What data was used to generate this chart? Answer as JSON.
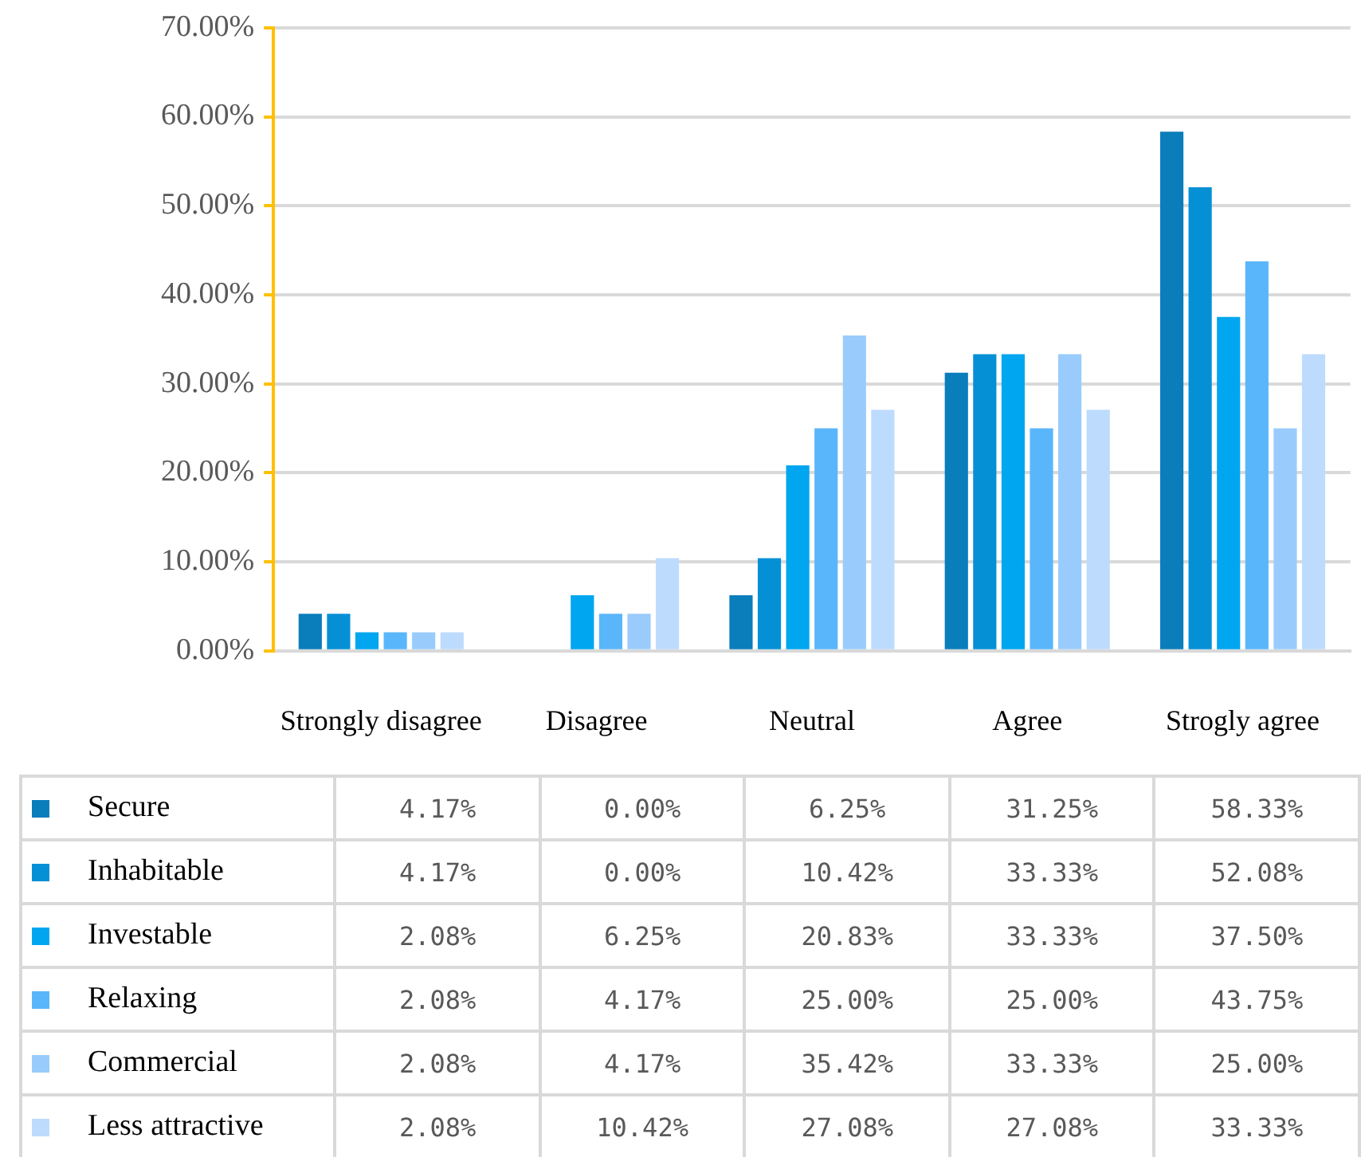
{
  "chart_data": {
    "type": "bar",
    "categories": [
      "Strongly disagree",
      "Disagree",
      "Neutral",
      "Agree",
      "Strogly agree"
    ],
    "series": [
      {
        "name": "Secure",
        "color": "#0a7dbb",
        "values": [
          4.17,
          0,
          6.25,
          31.25,
          58.33
        ],
        "value_labels": [
          "4.17%",
          "0.00%",
          "6.25%",
          "31.25%",
          "58.33%"
        ]
      },
      {
        "name": "Inhabitable",
        "color": "#0590d6",
        "values": [
          4.17,
          0,
          10.42,
          33.33,
          52.08
        ],
        "value_labels": [
          "4.17%",
          "0.00%",
          "10.42%",
          "33.33%",
          "52.08%"
        ]
      },
      {
        "name": "Investable",
        "color": "#00a6ef",
        "values": [
          2.08,
          6.25,
          20.83,
          33.33,
          37.5
        ],
        "value_labels": [
          "2.08%",
          "6.25%",
          "20.83%",
          "33.33%",
          "37.50%"
        ]
      },
      {
        "name": "Relaxing",
        "color": "#5ab6fb",
        "values": [
          2.08,
          4.17,
          25,
          25,
          43.75
        ],
        "value_labels": [
          "2.08%",
          "4.17%",
          "25.00%",
          "25.00%",
          "43.75%"
        ]
      },
      {
        "name": "Commercial",
        "color": "#99ccfc",
        "values": [
          2.08,
          4.17,
          35.42,
          33.33,
          25
        ],
        "value_labels": [
          "2.08%",
          "4.17%",
          "35.42%",
          "33.33%",
          "25.00%"
        ]
      },
      {
        "name": "Less attractive",
        "color": "#bddbfd",
        "values": [
          2.08,
          10.42,
          27.08,
          27.08,
          33.33
        ],
        "value_labels": [
          "2.08%",
          "10.42%",
          "27.08%",
          "27.08%",
          "33.33%"
        ]
      }
    ],
    "ylim": [
      0,
      70
    ],
    "yticks": [
      {
        "value": 0,
        "label": "0.00%"
      },
      {
        "value": 10,
        "label": "10.00%"
      },
      {
        "value": 20,
        "label": "20.00%"
      },
      {
        "value": 30,
        "label": "30.00%"
      },
      {
        "value": 40,
        "label": "40.00%"
      },
      {
        "value": 50,
        "label": "50.00%"
      },
      {
        "value": 60,
        "label": "60.00%"
      },
      {
        "value": 70,
        "label": "70.00%"
      }
    ],
    "grid": "y",
    "legend": "bottom"
  }
}
